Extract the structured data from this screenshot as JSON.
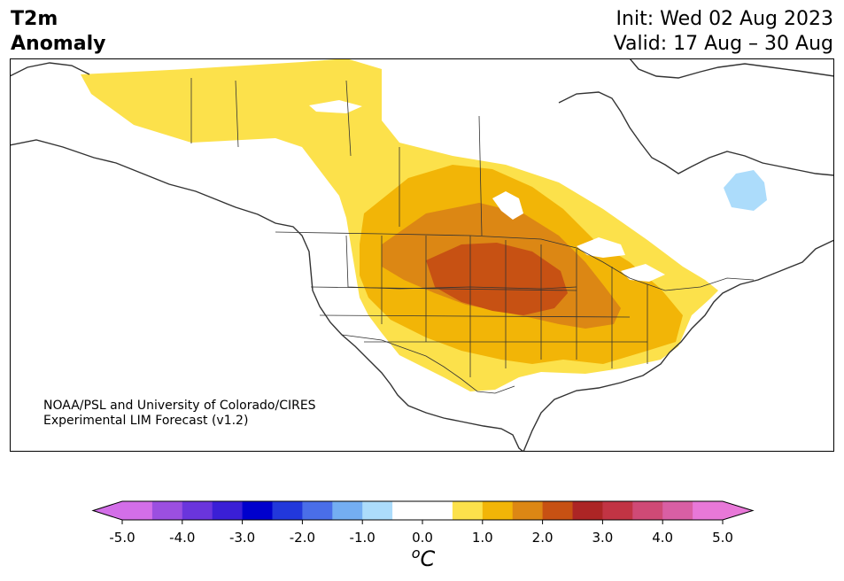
{
  "title": {
    "variable_line1": "T2m",
    "variable_line2": "Anomaly",
    "init": "Init: Wed 02 Aug 2023",
    "valid": "Valid: 17 Aug – 30 Aug"
  },
  "credit": {
    "line1": "NOAA/PSL and University of Colorado/CIRES",
    "line2": "Experimental LIM Forecast (v1.2)"
  },
  "colorbar": {
    "unit_base": "C",
    "unit_sup": "o",
    "tick_labels": [
      "-5.0",
      "-4.0",
      "-3.0",
      "-2.0",
      "-1.0",
      "0.0",
      "1.0",
      "2.0",
      "3.0",
      "4.0",
      "5.0"
    ],
    "colors": [
      "#d36ee8",
      "#9b4fe0",
      "#6a35dc",
      "#3a1fd6",
      "#0000cd",
      "#2238db",
      "#4a6ee8",
      "#74aef2",
      "#acdcfb",
      "#ffffff",
      "#ffffff",
      "#fce14b",
      "#f2b507",
      "#dc8714",
      "#c75113",
      "#ac2525",
      "#c13444",
      "#cf4a76",
      "#d95fa4",
      "#e878d8"
    ],
    "extend_min_color": "#d36ee8",
    "extend_max_color": "#e878d8"
  },
  "map": {
    "region": "North America",
    "land_color": "#ffffff",
    "outline_color": "#333333"
  }
}
